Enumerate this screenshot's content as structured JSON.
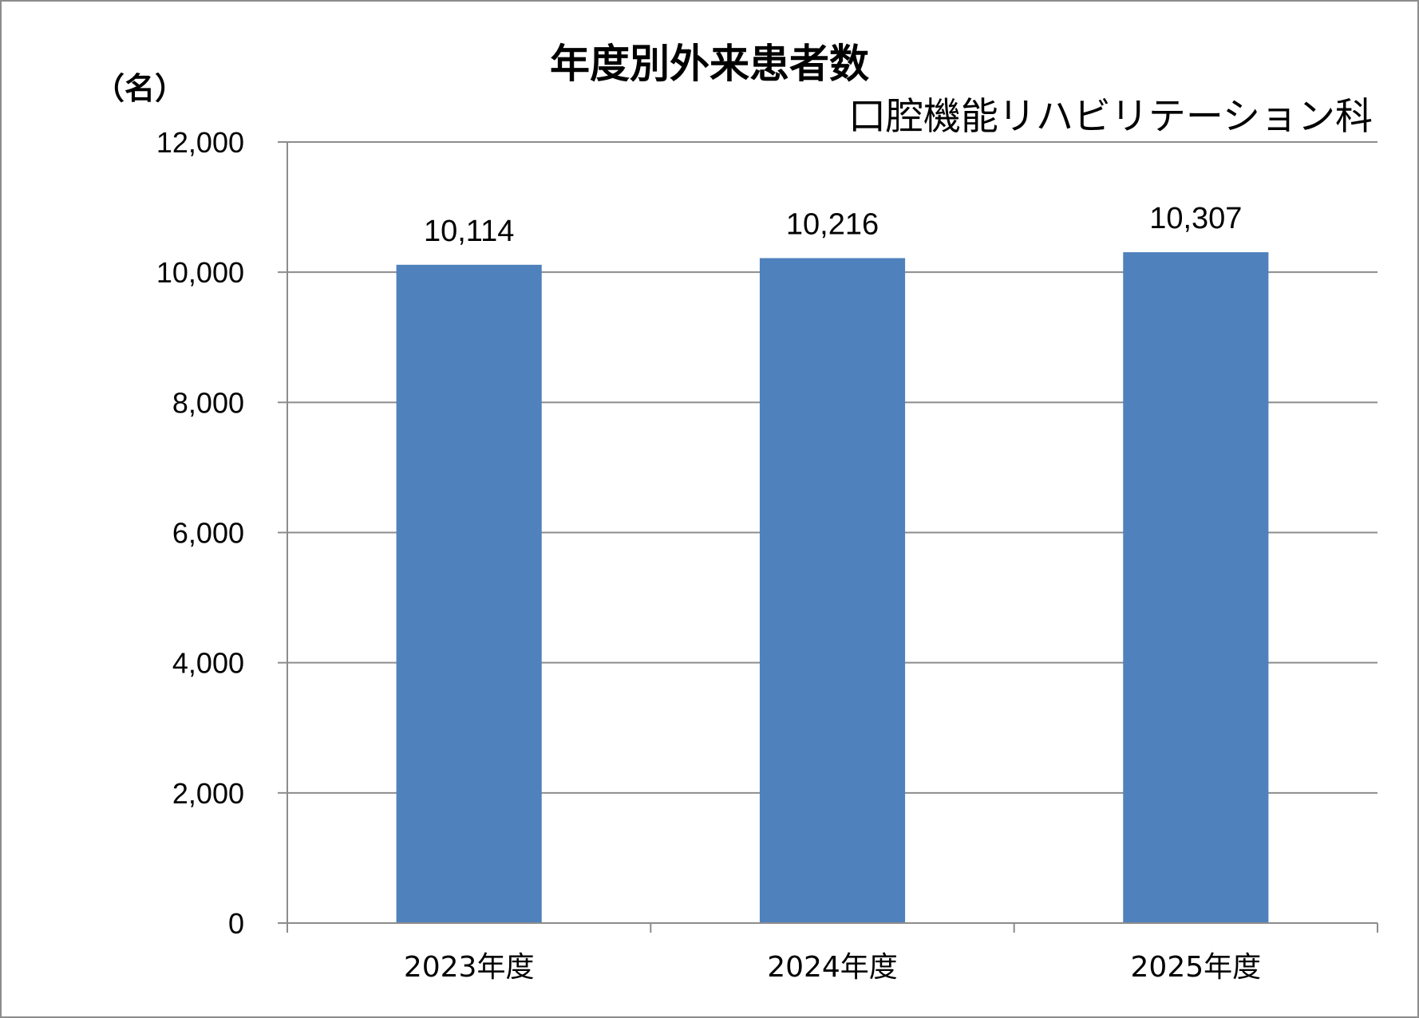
{
  "chart_data": {
    "type": "bar",
    "title": "年度別外来患者数",
    "subtitle": "口腔機能リハビリテーション科",
    "ylabel": "（名）",
    "xlabel": "",
    "categories": [
      "2023年度",
      "2024年度",
      "2025年度"
    ],
    "values": [
      10114,
      10216,
      10307
    ],
    "value_labels": [
      "10,114",
      "10,216",
      "10,307"
    ],
    "ylim": [
      0,
      12000
    ],
    "yticks": [
      0,
      2000,
      4000,
      6000,
      8000,
      10000,
      12000
    ],
    "ytick_labels": [
      "0",
      "2,000",
      "4,000",
      "6,000",
      "8,000",
      "10,000",
      "12,000"
    ],
    "grid": true,
    "legend": "none",
    "colors": {
      "bar": "#4F81BD",
      "grid": "#8C8C8C",
      "axis": "#8C8C8C",
      "frame": "#8C8C8C"
    }
  }
}
